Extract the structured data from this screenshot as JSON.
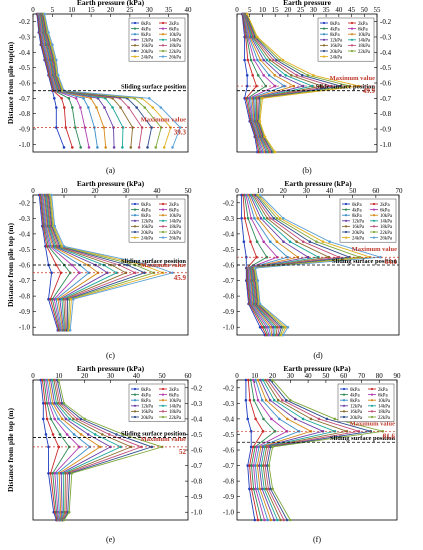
{
  "figure": {
    "common": {
      "xlabel": "Earth pressure (kPa)",
      "ylabel": "Distance from pile top (m)",
      "y_ticks": [
        "-0.2",
        "-0.3",
        "-0.4",
        "-0.5",
        "-0.6",
        "-0.7",
        "-0.8",
        "-0.9",
        "-1.0"
      ]
    }
  },
  "chart_data": [
    {
      "panel": "(a)",
      "type": "line",
      "xlabel": "Earth pressure (kPa)",
      "ylabel": "Distance from pile top(m)",
      "xlim": [
        0,
        40
      ],
      "xticks": [
        0,
        5,
        10,
        15,
        20,
        25,
        30,
        35,
        40
      ],
      "ylim": [
        -1.05,
        -0.15
      ],
      "grid": false,
      "legend": "top-right",
      "legend_labels": [
        "0kPa",
        "2kPa",
        "4kPa",
        "6kPa",
        "8kPa",
        "10kPa",
        "12kPa",
        "14kPa",
        "16kPa",
        "18kPa",
        "20kPa",
        "22kPa",
        "24kPa",
        "26kPa"
      ],
      "colors": [
        "#1f3fbf",
        "#cc2a2a",
        "#2e8b57",
        "#b03cb0",
        "#3b8ec8",
        "#d48a1a",
        "#6a3fa8",
        "#1aa79a",
        "#8c6d2e",
        "#c0507a",
        "#2f4f8f",
        "#7fa83a",
        "#e0b020",
        "#5aa0d8"
      ],
      "y": [
        -0.15,
        -0.27,
        -0.35,
        -0.45,
        -0.55,
        -0.65,
        -0.7,
        -0.76,
        -0.89,
        -1.02
      ],
      "profiles": {
        "min": [
          1.0,
          1.5,
          2.0,
          3.0,
          4.0,
          5.0,
          5.5,
          6.0,
          6.0,
          8.0
        ],
        "max": [
          3.0,
          4.0,
          5.0,
          6.0,
          6.5,
          8.0,
          30.0,
          33.0,
          38.0,
          36.0
        ]
      },
      "sliding_surface_y": -0.65,
      "sliding_label": "Sliding surface position",
      "max_label": "Maximum value",
      "max_value": "39.3",
      "max_value_y": -0.89,
      "label": "(a)"
    },
    {
      "panel": "(b)",
      "type": "line",
      "xlabel": "Earth pressure",
      "xlim": [
        0,
        55
      ],
      "xticks": [
        0,
        5,
        10,
        15,
        20,
        25,
        30,
        35,
        40,
        45,
        50,
        55
      ],
      "ylim": [
        -1.05,
        -0.15
      ],
      "grid": false,
      "legend": "top-right",
      "legend_labels": [
        "0kPa",
        "2kPa",
        "4kPa",
        "6kPa",
        "8kPa",
        "10kPa",
        "12kPa",
        "14kPa",
        "16kPa",
        "18kPa",
        "20kPa",
        "22kPa",
        "24kPa"
      ],
      "colors": [
        "#1f3fbf",
        "#cc2a2a",
        "#2e8b57",
        "#b03cb0",
        "#3b8ec8",
        "#d48a1a",
        "#6a3fa8",
        "#1aa79a",
        "#8c6d2e",
        "#c0507a",
        "#2f4f8f",
        "#7fa83a",
        "#e0b020"
      ],
      "y": [
        -0.15,
        -0.3,
        -0.45,
        -0.55,
        -0.62,
        -0.7,
        -0.85,
        -0.95,
        -1.05
      ],
      "profiles": {
        "min": [
          2.0,
          3.0,
          3.0,
          4.0,
          4.0,
          3.0,
          5.0,
          7.0,
          8.0
        ],
        "max": [
          4.0,
          8.0,
          18.0,
          30.0,
          48.0,
          10.0,
          9.0,
          11.0,
          15.0
        ]
      },
      "sliding_surface_y": -0.65,
      "sliding_label": "Slide surface position",
      "max_label": "Maximum value",
      "max_value": "49.9",
      "max_value_y": -0.62,
      "label": "(b)"
    },
    {
      "panel": "(c)",
      "type": "line",
      "xlabel": "Earth pressure (kPa)",
      "ylabel": "Distance from pile top (m)",
      "xlim": [
        0,
        50
      ],
      "xticks": [
        0,
        10,
        20,
        30,
        40,
        50
      ],
      "ylim": [
        -1.05,
        -0.15
      ],
      "grid": false,
      "legend": "top-right",
      "legend_labels": [
        "0kPa",
        "2kPa",
        "4kPa",
        "6kPa",
        "8kPa",
        "10kPa",
        "12kPa",
        "14kPa",
        "16kPa",
        "18kPa",
        "20kPa",
        "22kPa",
        "24kPa",
        "26kPa"
      ],
      "colors": [
        "#1f3fbf",
        "#cc2a2a",
        "#2e8b57",
        "#b03cb0",
        "#3b8ec8",
        "#d48a1a",
        "#6a3fa8",
        "#1aa79a",
        "#8c6d2e",
        "#c0507a",
        "#2f4f8f",
        "#7fa83a",
        "#e0b020",
        "#5aa0d8"
      ],
      "y": [
        -0.15,
        -0.35,
        -0.48,
        -0.6,
        -0.65,
        -0.82,
        -1.02
      ],
      "profiles": {
        "min": [
          2.0,
          3.0,
          4.0,
          5.0,
          6.0,
          5.0,
          8.0
        ],
        "max": [
          6.0,
          7.0,
          10.0,
          38.0,
          45.0,
          13.0,
          12.0
        ]
      },
      "sliding_surface_y": -0.6,
      "sliding_label": "Sliding surface position",
      "max_label": "Maximum value",
      "max_value": "45.9",
      "max_value_y": -0.65,
      "label": "(c)"
    },
    {
      "panel": "(d)",
      "type": "line",
      "xlabel": "Earth pressure (kPa)",
      "xlim": [
        0,
        70
      ],
      "xticks": [
        0,
        10,
        20,
        30,
        40,
        50,
        60,
        70
      ],
      "ylim": [
        -1.05,
        -0.15
      ],
      "grid": false,
      "legend": "top-right",
      "legend_labels": [
        "0kPa",
        "2kPa",
        "4kPa",
        "6kPa",
        "8kPa",
        "10kPa",
        "12kPa",
        "14kPa",
        "16kPa",
        "18kPa",
        "20kPa",
        "22kPa",
        "24kPa",
        "26kPa"
      ],
      "colors": [
        "#1f3fbf",
        "#cc2a2a",
        "#2e8b57",
        "#b03cb0",
        "#3b8ec8",
        "#d48a1a",
        "#6a3fa8",
        "#1aa79a",
        "#8c6d2e",
        "#c0507a",
        "#2f4f8f",
        "#7fa83a",
        "#e0b020",
        "#5aa0d8"
      ],
      "y": [
        -0.15,
        -0.3,
        -0.45,
        -0.55,
        -0.62,
        -0.7,
        -0.85,
        -1.0,
        -1.05
      ],
      "profiles": {
        "min": [
          2.0,
          2.0,
          3.0,
          4.0,
          4.0,
          4.0,
          5.0,
          10.0,
          12.0
        ],
        "max": [
          10.0,
          20.0,
          40.0,
          62.0,
          8.0,
          9.0,
          10.0,
          22.0,
          20.0
        ]
      },
      "sliding_surface_y": -0.6,
      "sliding_label": "Sliding surface position",
      "max_label": "Maximum value",
      "max_value": "64.1",
      "max_value_y": -0.55,
      "label": "(d)"
    },
    {
      "panel": "(e)",
      "type": "line",
      "xlabel": "Earth pressure (kPa)",
      "ylabel": "Distance from pile top (m)",
      "xlim": [
        0,
        60
      ],
      "xticks": [
        0,
        10,
        20,
        30,
        40,
        50,
        60
      ],
      "ylim": [
        -1.05,
        -0.15
      ],
      "grid": false,
      "legend": "top-right",
      "legend_labels": [
        "0kPa",
        "2kPa",
        "4kPa",
        "6kPa",
        "8kPa",
        "10kPa",
        "12kPa",
        "14kPa",
        "16kPa",
        "18kPa",
        "20kPa",
        "22kPa"
      ],
      "colors": [
        "#1f3fbf",
        "#cc2a2a",
        "#2e8b57",
        "#b03cb0",
        "#3b8ec8",
        "#d48a1a",
        "#6a3fa8",
        "#1aa79a",
        "#8c6d2e",
        "#c0507a",
        "#2f4f8f",
        "#7fa83a"
      ],
      "y": [
        -0.15,
        -0.3,
        -0.4,
        -0.5,
        -0.58,
        -0.75,
        -1.0,
        -1.05
      ],
      "profiles": {
        "min": [
          3.0,
          4.0,
          4.0,
          5.0,
          6.0,
          6.0,
          8.0,
          9.0
        ],
        "max": [
          10.0,
          12.0,
          20.0,
          35.0,
          50.0,
          15.0,
          14.0,
          12.0
        ]
      },
      "sliding_surface_y": -0.52,
      "sliding_label": "Sliding surface position",
      "max_label": "Maximum value",
      "max_value": "52",
      "max_value_y": -0.58,
      "label": "(e)"
    },
    {
      "panel": "(f)",
      "type": "line",
      "xlabel": "Earth pressure (kPa)",
      "xlim": [
        0,
        90
      ],
      "xticks": [
        0,
        10,
        20,
        30,
        40,
        50,
        60,
        70,
        80,
        90
      ],
      "ylim": [
        -1.05,
        -0.15
      ],
      "grid": false,
      "legend": "top-right",
      "legend_labels": [
        "0kPa",
        "2kPa",
        "4kPa",
        "6kPa",
        "8kPa",
        "10kPa",
        "12kPa",
        "14kPa",
        "16kPa",
        "18kPa",
        "20kPa",
        "22kPa"
      ],
      "colors": [
        "#1f3fbf",
        "#cc2a2a",
        "#2e8b57",
        "#b03cb0",
        "#3b8ec8",
        "#d48a1a",
        "#6a3fa8",
        "#1aa79a",
        "#8c6d2e",
        "#c0507a",
        "#2f4f8f",
        "#7fa83a"
      ],
      "y": [
        -0.15,
        -0.28,
        -0.4,
        -0.48,
        -0.58,
        -0.7,
        -0.85,
        -1.05
      ],
      "profiles": {
        "min": [
          5.0,
          5.0,
          6.0,
          8.0,
          8.0,
          6.0,
          7.0,
          10.0
        ],
        "max": [
          20.0,
          30.0,
          55.0,
          82.0,
          20.0,
          18.0,
          20.0,
          30.0
        ]
      },
      "sliding_surface_y": -0.55,
      "sliding_label": "Sliding surface position",
      "max_label": "Maximum value",
      "max_value": "81.6",
      "max_value_y": -0.48,
      "label": "(f)"
    }
  ]
}
